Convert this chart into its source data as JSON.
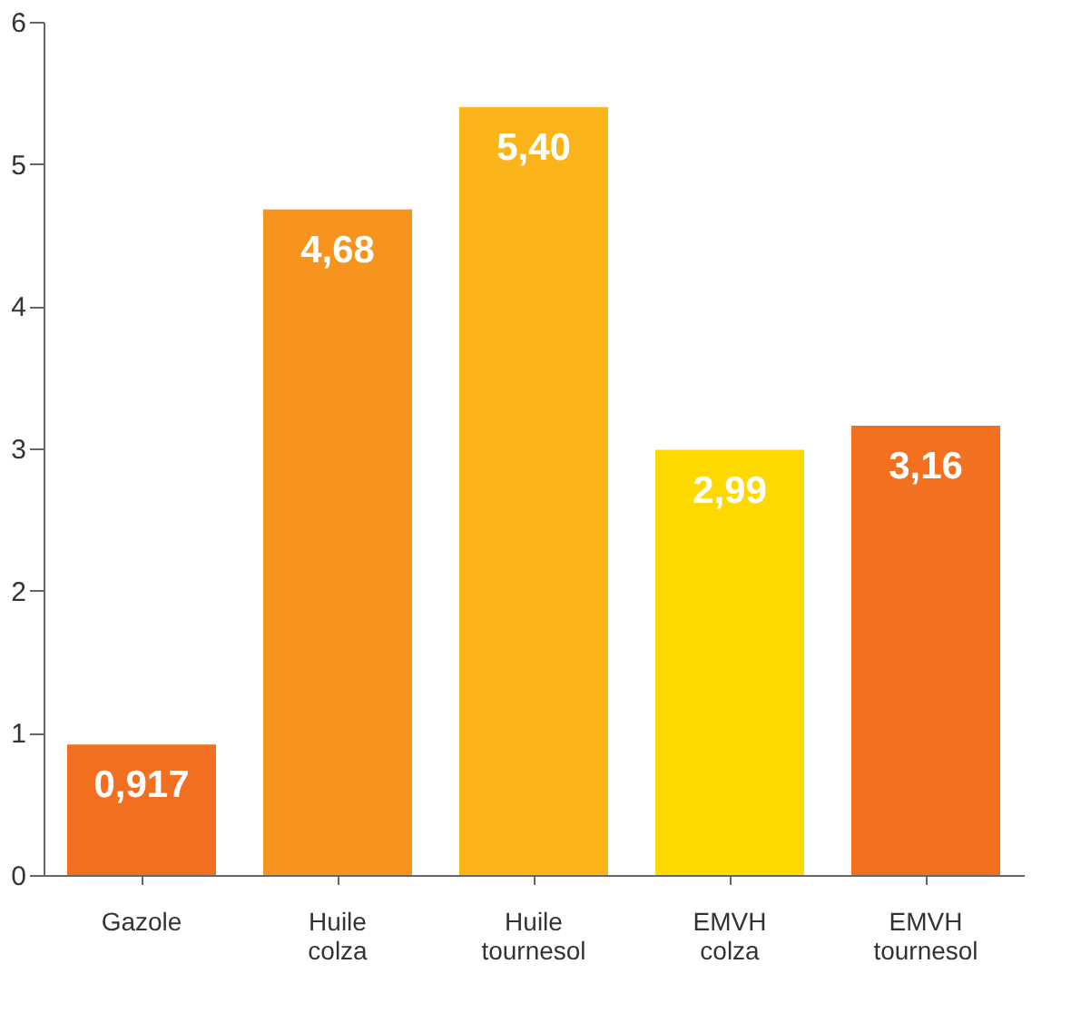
{
  "chart_data": {
    "type": "bar",
    "categories": [
      "Gazole",
      "Huile colza",
      "Huile tournesol",
      "EMVH colza",
      "EMVH tournesol"
    ],
    "values": [
      0.917,
      4.68,
      5.4,
      2.99,
      3.16
    ],
    "colors": [
      "#f26f22",
      "#f7941d",
      "#fbb51a",
      "#fdd900",
      "#f37021"
    ],
    "value_labels": [
      "0,917",
      "4,68",
      "5,40",
      "2,99",
      "3,16"
    ],
    "ylim": [
      0,
      6
    ],
    "yticks": [
      0,
      1,
      2,
      3,
      4,
      5,
      6
    ],
    "grid": false
  }
}
